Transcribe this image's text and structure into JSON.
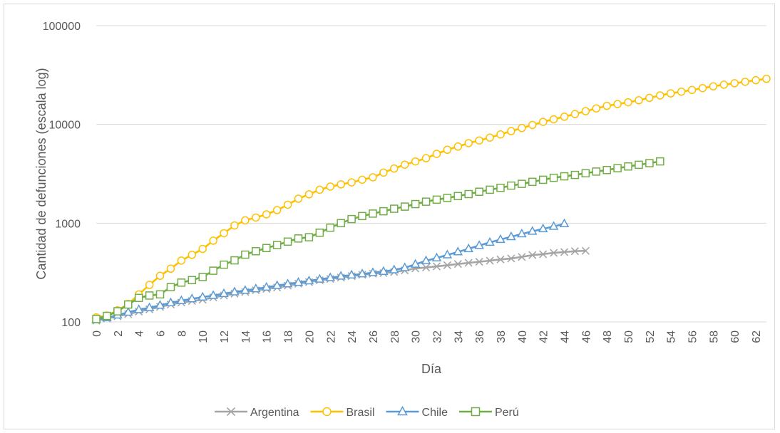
{
  "chart_data": {
    "type": "line",
    "title": "",
    "xlabel": "Día",
    "ylabel": "Cantidad de defunciones (escala log)",
    "y_scale": "log",
    "ylim": [
      100,
      100000
    ],
    "xlim": [
      0,
      63
    ],
    "y_ticks": [
      "100",
      "1000",
      "10000",
      "100000"
    ],
    "x_ticks": [
      "0",
      "2",
      "4",
      "6",
      "8",
      "10",
      "12",
      "14",
      "16",
      "18",
      "20",
      "22",
      "24",
      "26",
      "28",
      "30",
      "32",
      "34",
      "36",
      "38",
      "40",
      "42",
      "44",
      "46",
      "48",
      "50",
      "52",
      "54",
      "56",
      "58",
      "60",
      "62"
    ],
    "grid": true,
    "legend_position": "bottom",
    "series": [
      {
        "name": "Argentina",
        "color": "#a5a5a5",
        "marker": "x",
        "values": [
          103,
          108,
          114,
          120,
          127,
          134,
          142,
          150,
          157,
          163,
          168,
          177,
          185,
          193,
          201,
          209,
          216,
          223,
          233,
          244,
          253,
          264,
          272,
          281,
          291,
          300,
          308,
          312,
          320,
          332,
          348,
          356,
          365,
          375,
          386,
          396,
          406,
          417,
          429,
          439,
          455,
          475,
          485,
          500,
          510,
          520,
          525
        ]
      },
      {
        "name": "Brasil",
        "color": "#ffc000",
        "marker": "circle",
        "values": [
          111,
          116,
          131,
          152,
          190,
          237,
          293,
          346,
          418,
          478,
          548,
          665,
          791,
          947,
          1067,
          1140,
          1228,
          1355,
          1536,
          1768,
          1958,
          2178,
          2346,
          2468,
          2587,
          2753,
          2913,
          3250,
          3573,
          3910,
          4214,
          4546,
          5024,
          5535,
          5965,
          6459,
          6875,
          7349,
          7919,
          8543,
          9188,
          9871,
          10610,
          11275,
          11960,
          12730,
          13605,
          14520,
          15400,
          16060,
          16750,
          17550,
          18570,
          19650,
          20600,
          21450,
          22300,
          23300,
          24300,
          25250,
          26100,
          27000,
          28000,
          28950
        ]
      },
      {
        "name": "Chile",
        "color": "#5b9bd5",
        "marker": "triangle",
        "values": [
          105,
          110,
          117,
          125,
          133,
          139,
          147,
          156,
          164,
          171,
          178,
          185,
          193,
          201,
          208,
          216,
          224,
          233,
          242,
          251,
          260,
          270,
          280,
          290,
          298,
          306,
          315,
          324,
          336,
          353,
          383,
          415,
          444,
          476,
          511,
          550,
          594,
          638,
          682,
          728,
          777,
          826,
          875,
          925,
          985
        ]
      },
      {
        "name": "Perú",
        "color": "#70ad47",
        "marker": "square",
        "values": [
          107,
          115,
          128,
          150,
          175,
          185,
          190,
          225,
          250,
          265,
          285,
          330,
          380,
          420,
          480,
          520,
          560,
          600,
          650,
          700,
          720,
          800,
          900,
          1000,
          1100,
          1180,
          1250,
          1320,
          1400,
          1470,
          1560,
          1650,
          1730,
          1800,
          1880,
          1970,
          2080,
          2180,
          2280,
          2400,
          2500,
          2620,
          2750,
          2880,
          2980,
          3080,
          3200,
          3330,
          3450,
          3600,
          3750,
          3900,
          4050,
          4220
        ]
      }
    ]
  }
}
